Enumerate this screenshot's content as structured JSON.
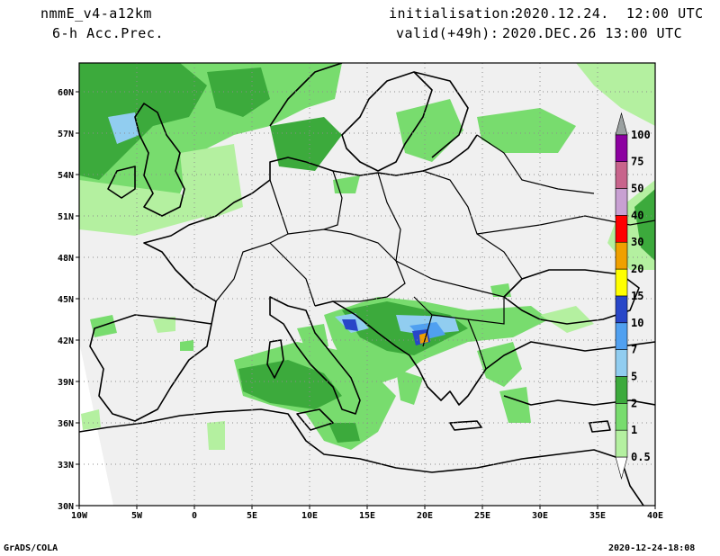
{
  "header": {
    "model": "nmmE_v4-a12km",
    "field": "6-h Acc.Prec.",
    "init_label": "initialisation:",
    "init_value": "2020.12.24.  12:00 UTC",
    "valid_label": "valid(+49h):",
    "valid_value": "2020.DEC.26 13:00 UTC"
  },
  "footer": {
    "left": "GrADS/COLA",
    "right": "2020-12-24-18:08"
  },
  "axes": {
    "lon_ticks": [
      "10W",
      "5W",
      "0",
      "5E",
      "10E",
      "15E",
      "20E",
      "25E",
      "30E",
      "35E",
      "40E"
    ],
    "lat_ticks": [
      "30N",
      "33N",
      "36N",
      "39N",
      "42N",
      "45N",
      "48N",
      "51N",
      "54N",
      "57N",
      "60N"
    ]
  },
  "colorbar": {
    "levels": [
      "0.5",
      "1",
      "2",
      "5",
      "7",
      "10",
      "15",
      "20",
      "30",
      "40",
      "50",
      "75",
      "100"
    ],
    "colors": [
      "#b4f0a0",
      "#78dc6e",
      "#3caa3c",
      "#91cdf0",
      "#50a0f0",
      "#2846c8",
      "#ffff00",
      "#f0a000",
      "#ff0000",
      "#c8a0d2",
      "#c8648c",
      "#8c00a0",
      "#9aa0a0"
    ]
  },
  "colors": {
    "land": "#f0f0f0",
    "grid": "#8c8c8c"
  }
}
